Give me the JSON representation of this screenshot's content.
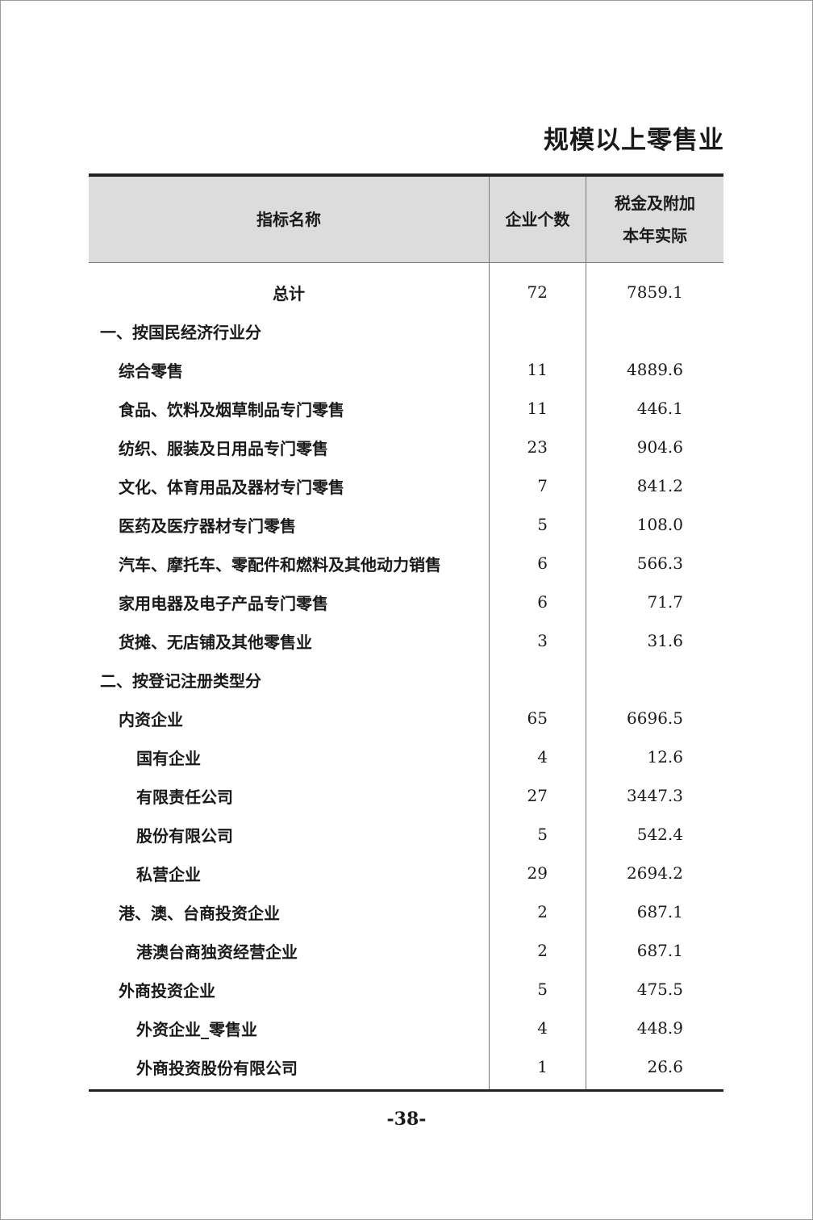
{
  "title": "规模以上零售业",
  "table": {
    "headers": [
      "指标名称",
      "企业个数",
      "税金及附加\n本年实际"
    ],
    "header_col3_line1": "税金及附加",
    "header_col3_line2": "本年实际",
    "rows": [
      {
        "name": "总计",
        "level": "c",
        "count": "72",
        "value": "7859.1"
      },
      {
        "name": "一、按国民经济行业分",
        "level": 0,
        "count": "",
        "value": ""
      },
      {
        "name": "综合零售",
        "level": 1,
        "count": "11",
        "value": "4889.6"
      },
      {
        "name": "食品、饮料及烟草制品专门零售",
        "level": 1,
        "count": "11",
        "value": "446.1"
      },
      {
        "name": "纺织、服装及日用品专门零售",
        "level": 1,
        "count": "23",
        "value": "904.6"
      },
      {
        "name": "文化、体育用品及器材专门零售",
        "level": 1,
        "count": "7",
        "value": "841.2"
      },
      {
        "name": "医药及医疗器材专门零售",
        "level": 1,
        "count": "5",
        "value": "108.0"
      },
      {
        "name": "汽车、摩托车、零配件和燃料及其他动力销售",
        "level": 1,
        "count": "6",
        "value": "566.3"
      },
      {
        "name": "家用电器及电子产品专门零售",
        "level": 1,
        "count": "6",
        "value": "71.7"
      },
      {
        "name": "货摊、无店铺及其他零售业",
        "level": 1,
        "count": "3",
        "value": "31.6"
      },
      {
        "name": "二、按登记注册类型分",
        "level": 0,
        "count": "",
        "value": ""
      },
      {
        "name": "内资企业",
        "level": 1,
        "count": "65",
        "value": "6696.5"
      },
      {
        "name": "国有企业",
        "level": 2,
        "count": "4",
        "value": "12.6"
      },
      {
        "name": "有限责任公司",
        "level": 2,
        "count": "27",
        "value": "3447.3"
      },
      {
        "name": "股份有限公司",
        "level": 2,
        "count": "5",
        "value": "542.4"
      },
      {
        "name": "私营企业",
        "level": 2,
        "count": "29",
        "value": "2694.2"
      },
      {
        "name": "港、澳、台商投资企业",
        "level": 1,
        "count": "2",
        "value": "687.1"
      },
      {
        "name": "港澳台商独资经营企业",
        "level": 2,
        "count": "2",
        "value": "687.1"
      },
      {
        "name": "外商投资企业",
        "level": 1,
        "count": "5",
        "value": "475.5"
      },
      {
        "name": "外资企业_零售业",
        "level": 2,
        "count": "4",
        "value": "448.9"
      },
      {
        "name": "外商投资股份有限公司",
        "level": 2,
        "count": "1",
        "value": "26.6"
      }
    ]
  },
  "page_number": "-38-"
}
